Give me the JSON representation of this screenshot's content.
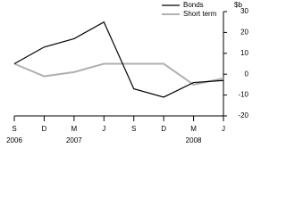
{
  "chart_data": {
    "type": "line",
    "y_label": "$b",
    "categories": [
      "S",
      "D",
      "M",
      "J",
      "S",
      "D",
      "M",
      "J"
    ],
    "years": [
      "2006",
      null,
      "2007",
      null,
      null,
      null,
      "2008",
      null
    ],
    "series": [
      {
        "name": "Bonds",
        "color": "#000000",
        "values": [
          5,
          13,
          17,
          25,
          -7,
          -11,
          -4,
          -3
        ]
      },
      {
        "name": "Short term",
        "color": "#b0b0b0",
        "values": [
          5,
          -1,
          1,
          5,
          5,
          5,
          -5,
          -2
        ]
      }
    ],
    "ylim": [
      -20,
      30
    ],
    "yticks": [
      -20,
      -10,
      0,
      10,
      20,
      30
    ]
  }
}
